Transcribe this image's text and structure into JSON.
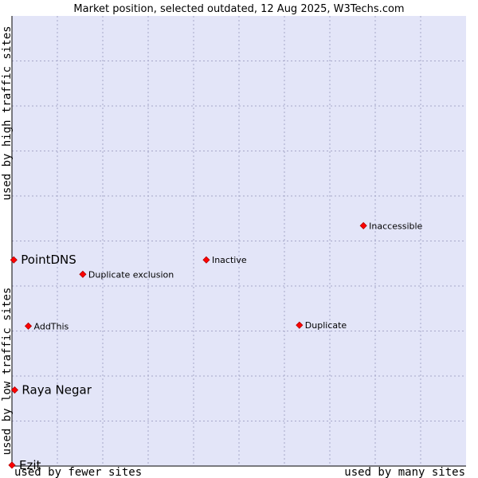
{
  "chart_data": {
    "type": "scatter",
    "title": "Market position, selected outdated, 12 Aug 2025, W3Techs.com",
    "xlabel_left": "used by fewer sites",
    "xlabel_right": "used by many sites",
    "ylabel_low": "used by low traffic sites",
    "ylabel_high": "used by high traffic sites",
    "xlim": [
      0,
      100
    ],
    "ylim": [
      0,
      100
    ],
    "grid": true,
    "colors": {
      "plot_bg": "#e3e5f8",
      "point": "#ff0000",
      "point_stroke": "#b00000",
      "axis": "#000000"
    },
    "points": [
      {
        "name": "Inaccessible",
        "x": 77.4,
        "y": 53.4,
        "size": "small"
      },
      {
        "name": "PointDNS",
        "x": 0.4,
        "y": 45.8,
        "size": "large"
      },
      {
        "name": "Inactive",
        "x": 42.8,
        "y": 45.8,
        "size": "small"
      },
      {
        "name": "Duplicate exclusion",
        "x": 15.6,
        "y": 42.6,
        "size": "small"
      },
      {
        "name": "AddThis",
        "x": 3.6,
        "y": 31.1,
        "size": "small"
      },
      {
        "name": "Duplicate",
        "x": 63.3,
        "y": 31.3,
        "size": "small"
      },
      {
        "name": "Raya Negar",
        "x": 0.6,
        "y": 16.9,
        "size": "large"
      },
      {
        "name": "Ezit",
        "x": 0.0,
        "y": 0.2,
        "size": "large"
      }
    ]
  }
}
